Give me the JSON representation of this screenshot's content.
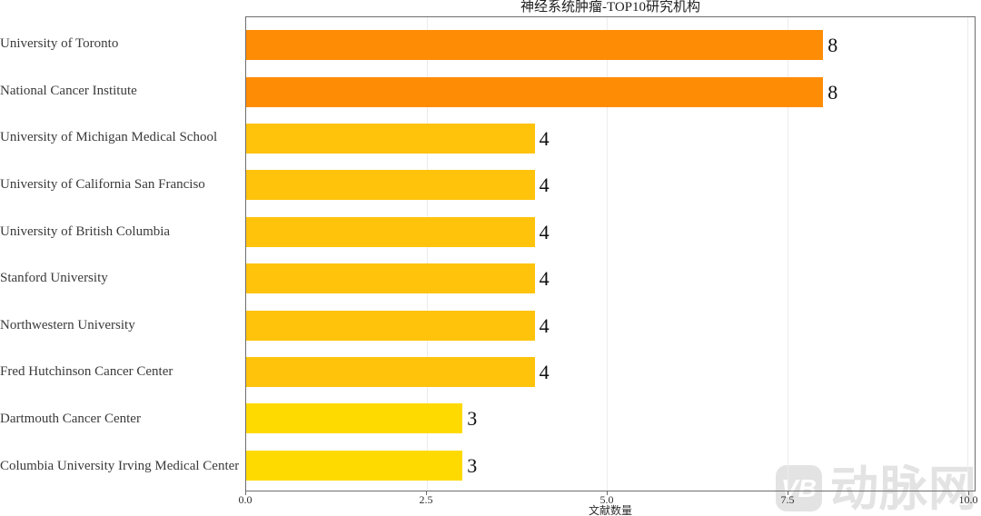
{
  "title": "神经系统肿瘤-TOP10研究机构",
  "watermark": {
    "logo_text": "VB",
    "brand_text": "动脉网",
    "color": "#e3e3e3"
  },
  "chart_data": {
    "type": "bar",
    "orientation": "horizontal",
    "title": "神经系统肿瘤-TOP10研究机构",
    "xlabel": "文献数量",
    "ylabel": "",
    "xlim": [
      0,
      10.1
    ],
    "xtick_values": [
      0,
      2.5,
      5,
      7.5,
      10
    ],
    "xtick_labels": [
      "0.0",
      "2.5",
      "5.0",
      "7.5",
      "10.0"
    ],
    "grid": true,
    "legend": false,
    "categories": [
      "University of Toronto",
      "National Cancer Institute",
      "University of Michigan Medical School",
      "University of California San Franciso",
      "University of British Columbia",
      "Stanford University",
      "Northwestern University",
      "Fred Hutchinson Cancer Center",
      "Dartmouth Cancer Center",
      "Columbia University Irving Medical Center"
    ],
    "values": [
      8,
      8,
      4,
      4,
      4,
      4,
      4,
      4,
      3,
      3
    ],
    "bar_colors": [
      "#ff8c05",
      "#ff8c05",
      "#ffc30b",
      "#ffc30b",
      "#ffc30b",
      "#ffc30b",
      "#ffc30b",
      "#ffc30b",
      "#ffda00",
      "#ffda00"
    ],
    "value_label_color": "#101010",
    "gridline_color": "#ececec",
    "spine_color": "#6e6e6e"
  }
}
